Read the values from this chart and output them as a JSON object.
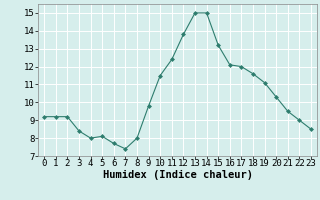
{
  "x": [
    0,
    1,
    2,
    3,
    4,
    5,
    6,
    7,
    8,
    9,
    10,
    11,
    12,
    13,
    14,
    15,
    16,
    17,
    18,
    19,
    20,
    21,
    22,
    23
  ],
  "y": [
    9.2,
    9.2,
    9.2,
    8.4,
    8.0,
    8.1,
    7.7,
    7.4,
    8.0,
    9.8,
    11.5,
    12.4,
    13.8,
    15.0,
    15.0,
    13.2,
    12.1,
    12.0,
    11.6,
    11.1,
    10.3,
    9.5,
    9.0,
    8.5
  ],
  "xlabel": "Humidex (Indice chaleur)",
  "ylim": [
    7,
    15.5
  ],
  "xlim": [
    -0.5,
    23.5
  ],
  "yticks": [
    7,
    8,
    9,
    10,
    11,
    12,
    13,
    14,
    15
  ],
  "xtick_labels": [
    "0",
    "1",
    "2",
    "3",
    "4",
    "5",
    "6",
    "7",
    "8",
    "9",
    "10",
    "11",
    "12",
    "13",
    "14",
    "15",
    "16",
    "17",
    "18",
    "19",
    "20",
    "21",
    "22",
    "23"
  ],
  "line_color": "#2e7d6e",
  "marker": "D",
  "marker_size": 2.0,
  "bg_color": "#d6eeec",
  "grid_color": "#ffffff",
  "xlabel_fontsize": 7.5,
  "tick_fontsize": 6.5,
  "ytick_fontsize": 6.5
}
